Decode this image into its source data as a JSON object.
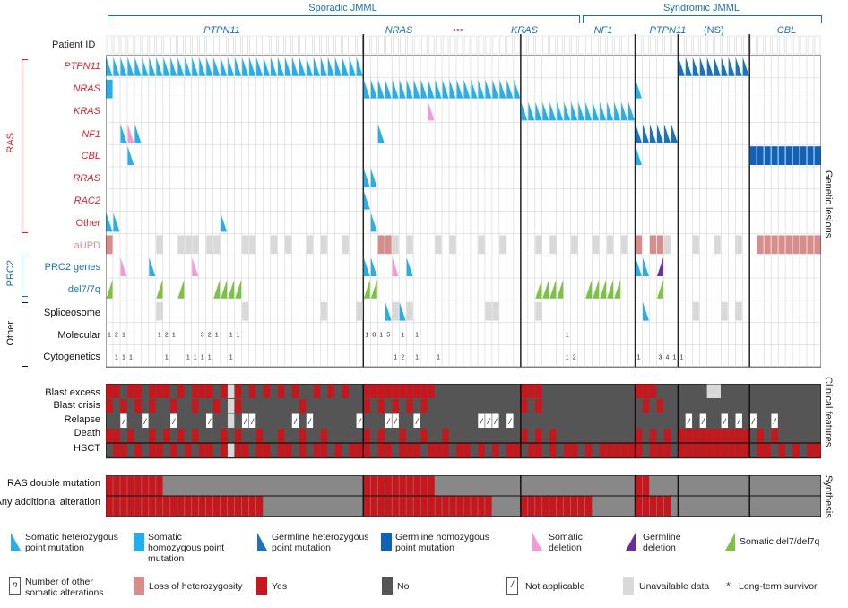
{
  "groups": {
    "sporadic": "Sporadic JMML",
    "syndromic": "Syndromic JMML"
  },
  "subgroups": [
    "PTPN11",
    "NRAS",
    "KRAS",
    "NF1",
    "PTPN11",
    "(NS)",
    "CBL"
  ],
  "ellipsis": "•••",
  "patient_id_label": "Patient ID",
  "row_labels": {
    "ras": [
      "PTPN11",
      "NRAS",
      "KRAS",
      "NF1",
      "CBL",
      "RRAS",
      "RAC2",
      "Other"
    ],
    "aupd": "aUPD",
    "prc2": [
      "PRC2 genes",
      "del7/7q"
    ],
    "other": [
      "Spliceosome",
      "Molecular",
      "Cytogenetics"
    ],
    "clinical": [
      "Blast excess",
      "Blast crisis",
      "Relapse",
      "Death",
      "HSCT"
    ],
    "synthesis": [
      "RAS double mutation",
      "Any additional alteration"
    ]
  },
  "side_labels": {
    "ras": "RAS",
    "prc2": "PRC2",
    "other": "Other",
    "genetic": "Genetic lesions",
    "clinical": "Clinical features",
    "synthesis": "Synthesis"
  },
  "colors": {
    "somatic_het": "#29aee8",
    "somatic_hom": "#23aee8",
    "germline_het": "#1b72be",
    "germline_hom": "#0f62b8",
    "somatic_del": "#f49ad6",
    "germline_del": "#6a2d9e",
    "del7": "#7cc243",
    "loh": "#d98c8c",
    "yes": "#c8161d",
    "no": "#555555",
    "unavailable": "#d9d9d9",
    "ras_red": "#e0242a",
    "prc2_blue": "#1d6fb5"
  },
  "legend": {
    "row1": [
      {
        "label": "Somatic heterozygous point mutation",
        "icon": "triangle-light-blue"
      },
      {
        "label": "Somatic homozygous point mutation",
        "icon": "square-light-blue"
      },
      {
        "label": "Germline heterozygous point mutation",
        "icon": "triangle-dark-blue"
      },
      {
        "label": "Germline homozygous point mutation",
        "icon": "square-dark-blue"
      },
      {
        "label": "Somatic deletion",
        "icon": "triangle-pink"
      },
      {
        "label": "Germline deletion",
        "icon": "triangle-purple"
      },
      {
        "label": "Somatic del7/del7q",
        "icon": "triangle-green"
      }
    ],
    "row2": [
      {
        "label": "Number of other somatic alterations",
        "icon": "n-box",
        "symbol": "n"
      },
      {
        "label": "Loss of heterozygosity",
        "icon": "square-rose"
      },
      {
        "label": "Yes",
        "icon": "square-red"
      },
      {
        "label": "No",
        "icon": "square-dark-grey"
      },
      {
        "label": "Not applicable",
        "icon": "slash-box",
        "symbol": "/"
      },
      {
        "label": "Unavailable data",
        "icon": "square-light-grey"
      },
      {
        "label": "Long-term survivor",
        "icon": "star",
        "symbol": "*"
      }
    ]
  },
  "molecular_counts": [
    "1",
    "2",
    "1",
    "1",
    "2",
    "1",
    "3",
    "2",
    "1",
    "1",
    "1",
    "1",
    "8",
    "1",
    "5",
    "1",
    "1",
    "1"
  ],
  "cytogenetics_counts": [
    "1",
    "1",
    "1",
    "1",
    "1",
    "1",
    "1",
    "1",
    "1",
    "1",
    "2",
    "1",
    "1",
    "1",
    "2",
    "1",
    "3",
    "4",
    "1",
    "1"
  ]
}
